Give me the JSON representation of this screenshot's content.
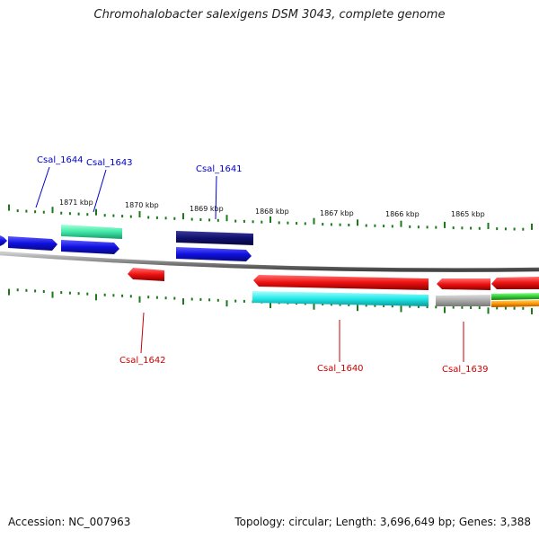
{
  "title": "Chromohalobacter salexigens DSM 3043, complete genome",
  "footer": {
    "accession": "Accession: NC_007963",
    "summary": "Topology: circular; Length: 3,696,649 bp; Genes: 3,388"
  },
  "scale_labels": [
    "1871 kbp",
    "1870 kbp",
    "1869 kbp",
    "1868 kbp",
    "1867 kbp",
    "1866 kbp",
    "1865 kbp"
  ],
  "gene_labels": {
    "forward": [
      "Csal_1644",
      "Csal_1643",
      "Csal_1641"
    ],
    "reverse": [
      "Csal_1642",
      "Csal_1640",
      "Csal_1639"
    ]
  },
  "colors": {
    "forward_label": "#0000cc",
    "reverse_label": "#cc0000",
    "ticks": "#1a7a1a",
    "backbone": "#888888",
    "cds_blue": "#1010e0",
    "cds_navy": "#10106e",
    "cds_teal": "#40e8a8",
    "cds_red": "#ee1111",
    "cds_cyan": "#22e8e8",
    "gray": "#aaaaaa",
    "green": "#33cc33",
    "orange": "#ff9900"
  }
}
